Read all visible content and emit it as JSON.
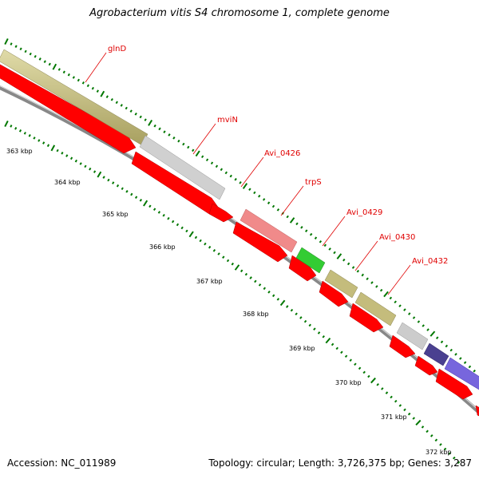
{
  "title": "Agrobacterium vitis S4 chromosome 1, complete genome",
  "footer": {
    "accession": "Accession: NC_011989",
    "info": "Topology: circular; Length: 3,726,375 bp; Genes: 3,287"
  },
  "colors": {
    "cds": "#ff0000",
    "backbone": "#999999",
    "tick": "#007700",
    "label": "#e00000",
    "olive": "#c8c080",
    "grey": "#cccccc",
    "pink": "#f08080",
    "green": "#33cc33",
    "navy": "#4a4090",
    "violet": "#7766dd"
  },
  "tick_labels": [
    "363 kbp",
    "364 kbp",
    "365 kbp",
    "366 kbp",
    "367 kbp",
    "368 kbp",
    "369 kbp",
    "370 kbp",
    "371 kbp",
    "372 kbp"
  ],
  "gene_labels": [
    "glnD",
    "mviN",
    "Avi_0426",
    "trpS",
    "Avi_0429",
    "Avi_0430",
    "Avi_0432"
  ]
}
